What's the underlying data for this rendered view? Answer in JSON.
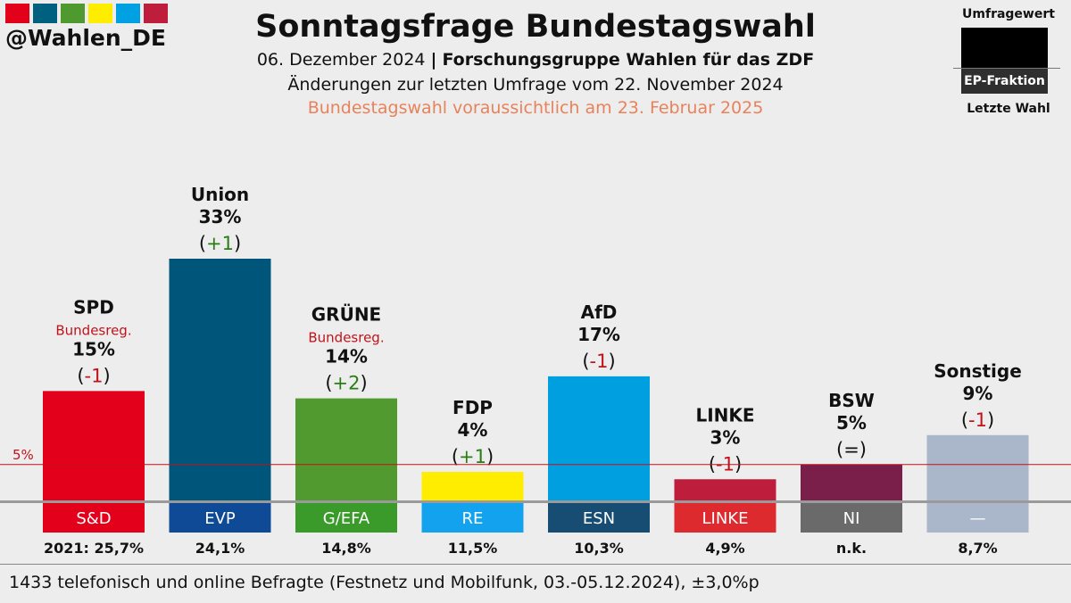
{
  "brand": {
    "handle": "@Wahlen_DE",
    "strip_colors": [
      "#e3001b",
      "#00607f",
      "#4f9a2e",
      "#ffed00",
      "#00a1e3",
      "#be1e3c"
    ]
  },
  "header": {
    "title": "Sonntagsfrage Bundestagswahl",
    "date": "06. Dezember 2024",
    "separator": "|",
    "pollster": "Forschungsgruppe Wahlen für das ZDF",
    "changes_note": "Änderungen zur letzten Umfrage vom 22. November 2024",
    "election_note": "Bundestagswahl voraussichtlich am 23. Februar 2025",
    "election_note_color": "#e8825a"
  },
  "legend": {
    "poll_value": "Umfragewert",
    "ep_group": "EP-Fraktion",
    "last_election": "Letzte Wahl"
  },
  "chart_data": {
    "type": "bar",
    "ylim": [
      0,
      40
    ],
    "threshold": {
      "value": 5,
      "label": "5%",
      "color": "#c0121b"
    },
    "categories": [
      "SPD",
      "Union",
      "GRÜNE",
      "FDP",
      "AfD",
      "LINKE",
      "BSW",
      "Sonstige"
    ],
    "values": [
      15,
      33,
      14,
      4,
      17,
      3,
      5,
      9
    ],
    "bars": [
      {
        "party": "SPD",
        "value_label": "15%",
        "change": "-1",
        "change_dir": "down",
        "gov": "Bundesreg.",
        "color": "#e3001b",
        "ep": "S&D",
        "ep_color": "#e3001b",
        "last": "2021: 25,7%"
      },
      {
        "party": "Union",
        "value_label": "33%",
        "change": "+1",
        "change_dir": "up",
        "gov": "",
        "color": "#00557a",
        "ep": "EVP",
        "ep_color": "#0e4a96",
        "last": "24,1%"
      },
      {
        "party": "GRÜNE",
        "value_label": "14%",
        "change": "+2",
        "change_dir": "up",
        "gov": "Bundesreg.",
        "color": "#509a2f",
        "ep": "G/EFA",
        "ep_color": "#3a9a2a",
        "last": "14,8%"
      },
      {
        "party": "FDP",
        "value_label": "4%",
        "change": "+1",
        "change_dir": "up",
        "gov": "",
        "color": "#ffed00",
        "ep": "RE",
        "ep_color": "#13a3ee",
        "last": "11,5%"
      },
      {
        "party": "AfD",
        "value_label": "17%",
        "change": "-1",
        "change_dir": "down",
        "gov": "",
        "color": "#009fe0",
        "ep": "ESN",
        "ep_color": "#184d73",
        "last": "10,3%"
      },
      {
        "party": "LINKE",
        "value_label": "3%",
        "change": "-1",
        "change_dir": "down",
        "gov": "",
        "color": "#be1e3c",
        "ep": "LINKE",
        "ep_color": "#dd2a2f",
        "last": "4,9%"
      },
      {
        "party": "BSW",
        "value_label": "5%",
        "change": "=",
        "change_dir": "same",
        "gov": "",
        "color": "#7a1f4a",
        "ep": "NI",
        "ep_color": "#6a6a6a",
        "last": "n.k."
      },
      {
        "party": "Sonstige",
        "value_label": "9%",
        "change": "-1",
        "change_dir": "down",
        "gov": "",
        "color": "#aab7cb",
        "ep": "—",
        "ep_color": "#aab7cb",
        "last": "8,7%"
      }
    ],
    "change_colors": {
      "up": "#2a7d16",
      "down": "#c0121b",
      "same": "#111111"
    },
    "gov_color": "#c0121b"
  },
  "footer": {
    "text": "1433 telefonisch und online Befragte (Festnetz und Mobilfunk, 03.-05.12.2024), ±3,0%p"
  }
}
